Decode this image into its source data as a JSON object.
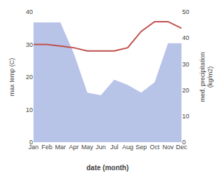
{
  "chart_data": {
    "type": "line",
    "categories": [
      "Jan",
      "Feb",
      "Mar",
      "Apr",
      "May",
      "Jun",
      "Jul",
      "Aug",
      "Sep",
      "Oct",
      "Nov",
      "Dec"
    ],
    "xlabel": "date (month)",
    "ylabel": "max temp (C)",
    "y2label": "med. precipitation\n(kg/m2)",
    "series": [
      {
        "type": "area",
        "axis": "y2",
        "color": "#b8c3e8",
        "values": [
          46.0,
          46.0,
          46.0,
          34.0,
          19.0,
          18.0,
          24.0,
          22.0,
          19.0,
          23.0,
          38.0,
          38.0
        ]
      },
      {
        "type": "line",
        "color": "#c0504d",
        "values": [
          30.0,
          30.0,
          29.5,
          29.0,
          28.0,
          28.0,
          28.0,
          29.0,
          34.0,
          37.0,
          37.0,
          35.0
        ]
      }
    ],
    "ylim": [
      0,
      40
    ],
    "yticks": [
      0,
      10,
      20,
      30,
      40
    ],
    "y2lim": [
      0,
      50
    ],
    "y2ticks": [
      0,
      10,
      20,
      30,
      40,
      50
    ],
    "grid": false
  }
}
